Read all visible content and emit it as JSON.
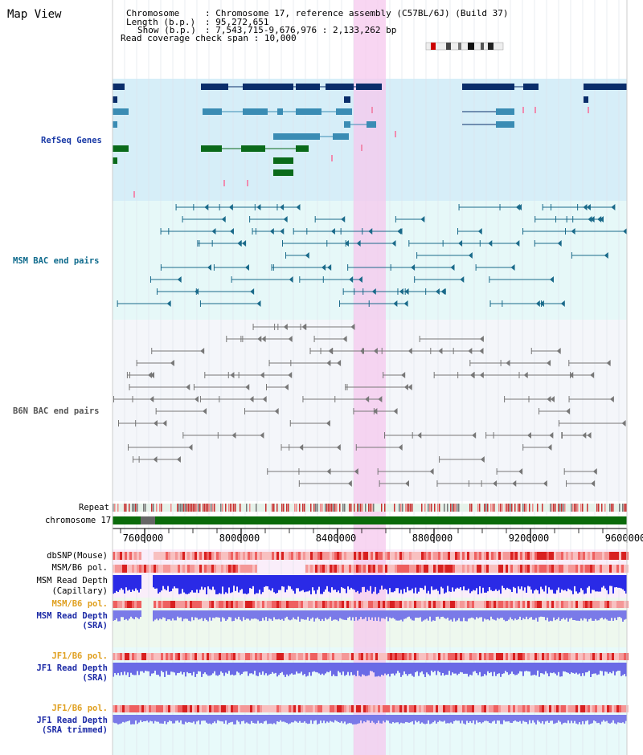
{
  "header": {
    "title": "Map View",
    "chromosome_label": "Chromosome",
    "chromosome_value": "Chromosome 17, reference assembly (C57BL/6J) (Build 37)",
    "length_label": "Length (b.p.)",
    "length_value": "95,272,651",
    "show_label": "Show (b.p.)",
    "show_value": "7,543,715-9,676,976 : 2,133,262 bp",
    "read_cov_label": "Read coverage check span",
    "read_cov_value": "10,000"
  },
  "tracks": {
    "refseq": "RefSeq Genes",
    "msm_bac": "MSM BAC end pairs",
    "b6n_bac": "B6N BAC end pairs",
    "repeat": "Repeat",
    "chromosome": "chromosome 17",
    "dbsnp": "dbSNP(Mouse)",
    "msm_b6_pol": "MSM/B6 pol.",
    "msm_read_depth_cap": "MSM Read Depth",
    "capillary": "(Capillary)",
    "msm_b6_pol2": "MSM/B6 pol.",
    "msm_read_depth_sra": "MSM Read Depth",
    "sra": "(SRA)",
    "jf1_b6_pol": "JF1/B6 pol.",
    "jf1_read_depth": "JF1 Read Depth",
    "sra2": "(SRA)",
    "jf1_b6_pol2": "JF1/B6 pol.",
    "jf1_read_depth2": "JF1 Read Depth",
    "sra_trimmed": "(SRA trimmed)"
  },
  "axis": {
    "ticks": [
      "7600000",
      "8000000",
      "8400000",
      "8800000",
      "9200000",
      "9600000"
    ]
  },
  "colors": {
    "highlight": "#f6d2f0",
    "refseq_bg": "#d6eef8",
    "msm_bg": "#e6f8f8",
    "b6n_bg": "#f4f6fa",
    "gene_dark": "#0a2d6a",
    "gene_mid": "#3a8cb4",
    "gene_green": "#0a6a1a",
    "chromosome_bar": "#0a6a0a"
  }
}
